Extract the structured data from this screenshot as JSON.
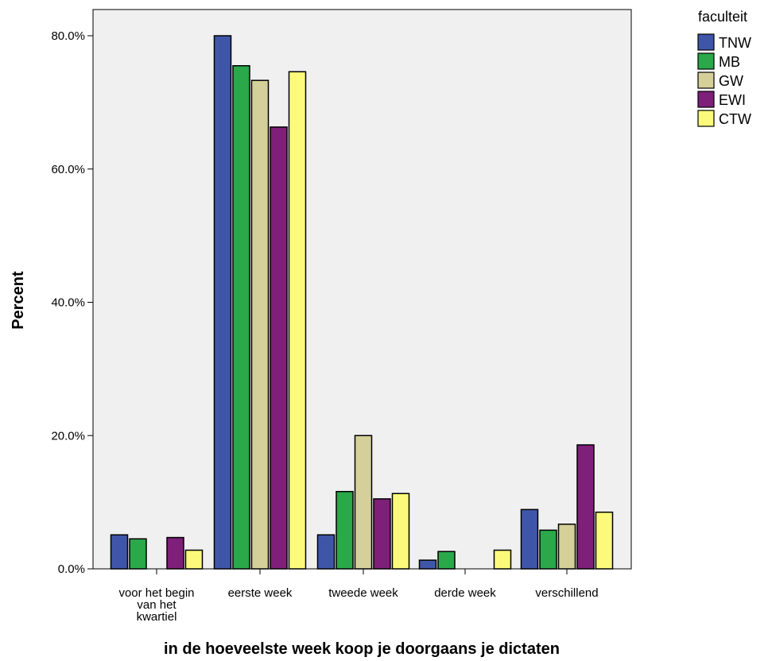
{
  "chart_data": {
    "type": "bar",
    "xlabel": "in de hoeveelste week koop je doorgaans je dictaten",
    "ylabel": "Percent",
    "ylim": [
      0,
      80
    ],
    "yticks": [
      {
        "value": 0,
        "label": "0.0%"
      },
      {
        "value": 20,
        "label": "20.0%"
      },
      {
        "value": 40,
        "label": "40.0%"
      },
      {
        "value": 60,
        "label": "60.0%"
      },
      {
        "value": 80,
        "label": "80.0%"
      }
    ],
    "categories": [
      [
        "voor het begin",
        "van het",
        "kwartiel"
      ],
      [
        "eerste week"
      ],
      [
        "tweede week"
      ],
      [
        "derde week"
      ],
      [
        "verschillend"
      ]
    ],
    "legend_title": "faculteit",
    "legend_position": "top-right",
    "grid": false,
    "series": [
      {
        "name": "TNW",
        "color": "#3f56a8",
        "values": [
          5.1,
          80.0,
          5.1,
          1.3,
          8.9
        ]
      },
      {
        "name": "MB",
        "color": "#2aa84a",
        "values": [
          4.5,
          75.5,
          11.6,
          2.6,
          5.8
        ]
      },
      {
        "name": "GW",
        "color": "#d5cf9a",
        "values": [
          0,
          73.3,
          20.0,
          0,
          6.7
        ]
      },
      {
        "name": "EWI",
        "color": "#7e1f7a",
        "values": [
          4.7,
          66.3,
          10.5,
          0,
          18.6
        ]
      },
      {
        "name": "CTW",
        "color": "#fbfa7a",
        "values": [
          2.8,
          74.6,
          11.3,
          2.8,
          8.5
        ]
      }
    ],
    "plot_background": "#f0f0f0"
  }
}
